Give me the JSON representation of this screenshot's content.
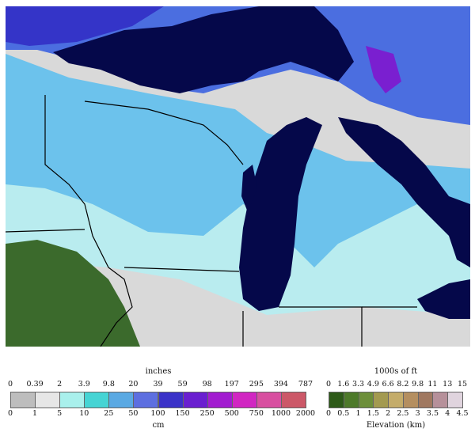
{
  "snow_legend": {
    "unit_top": "inches",
    "unit_bottom": "cm",
    "inch_labels": [
      "0",
      "0.39",
      "2",
      "3.9",
      "9.8",
      "20",
      "39",
      "59",
      "98",
      "197",
      "295",
      "394",
      "787"
    ],
    "cm_labels": [
      "0",
      "1",
      "5",
      "10",
      "25",
      "50",
      "100",
      "150",
      "250",
      "500",
      "750",
      "1000",
      "2000"
    ],
    "colors": [
      "#bdbdbd",
      "#e6e6e6",
      "#a9f0ec",
      "#46d4d4",
      "#5aa9e3",
      "#5d6fe0",
      "#3b32c8",
      "#6a1fd0",
      "#a21cd0",
      "#d126c2",
      "#d84fa0",
      "#cc5868"
    ]
  },
  "elevation_legend": {
    "unit_top": "1000s of ft",
    "unit_bottom": "Elevation (km)",
    "ft_labels": [
      "0",
      "1.6",
      "3.3",
      "4.9",
      "6.6",
      "8.2",
      "9.8",
      "11",
      "13",
      "15"
    ],
    "km_labels": [
      "0",
      "0.5",
      "1",
      "1.5",
      "2",
      "2.5",
      "3",
      "3.5",
      "4",
      "4.5"
    ],
    "colors": [
      "#2d5a18",
      "#4d7a2a",
      "#6d8f3a",
      "#a39a50",
      "#c4ac6a",
      "#b58f60",
      "#a07860",
      "#b6909a",
      "#e0d4de"
    ]
  },
  "map_colors": {
    "water": "#05084a",
    "ground_bare": "#d9d9d9",
    "snow_light": "#b9ecef",
    "snow_mid": "#6cc2ec",
    "snow_heavy": "#4b6ee0",
    "snow_deep": "#3434c8",
    "forest_green": "#3b6a2c"
  }
}
